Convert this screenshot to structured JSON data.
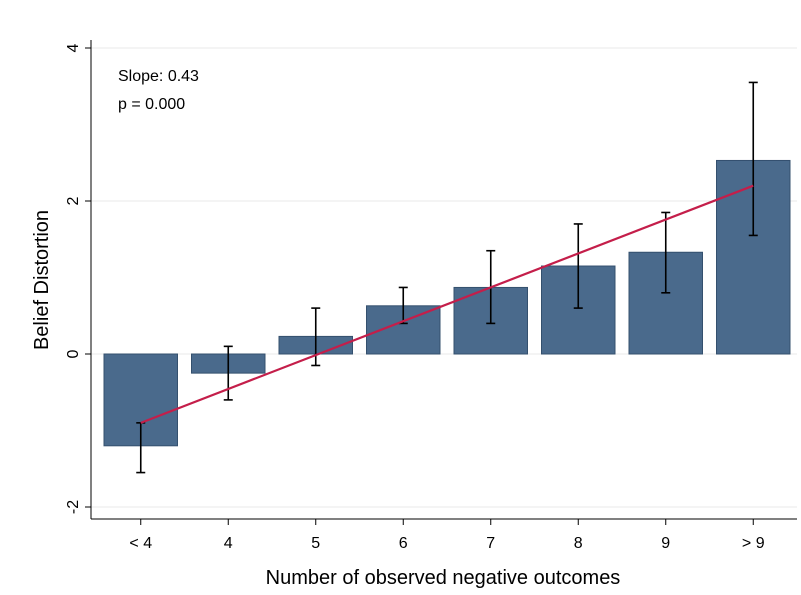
{
  "chart_data": {
    "type": "bar",
    "title": "",
    "xlabel": "Number of observed negative outcomes",
    "ylabel": "Belief Distortion",
    "categories": [
      "< 4",
      "4",
      "5",
      "6",
      "7",
      "8",
      "9",
      "> 9"
    ],
    "values": [
      -1.2,
      -0.25,
      0.23,
      0.63,
      0.87,
      1.15,
      1.33,
      2.53
    ],
    "error_low": [
      -1.55,
      -0.6,
      -0.15,
      0.4,
      0.4,
      0.6,
      0.8,
      1.55
    ],
    "error_high": [
      -0.9,
      0.1,
      0.6,
      0.87,
      1.35,
      1.7,
      1.85,
      3.55
    ],
    "ylim": [
      -2.2,
      4.1
    ],
    "yticks": [
      -2,
      0,
      2,
      4
    ],
    "fit_line": {
      "start": -0.9,
      "end": 2.2
    },
    "annotations": [
      "Slope: 0.43",
      "p = 0.000"
    ],
    "grid": true,
    "colors": {
      "bar": "#4a6a8c",
      "fit": "#c41e4a"
    }
  }
}
